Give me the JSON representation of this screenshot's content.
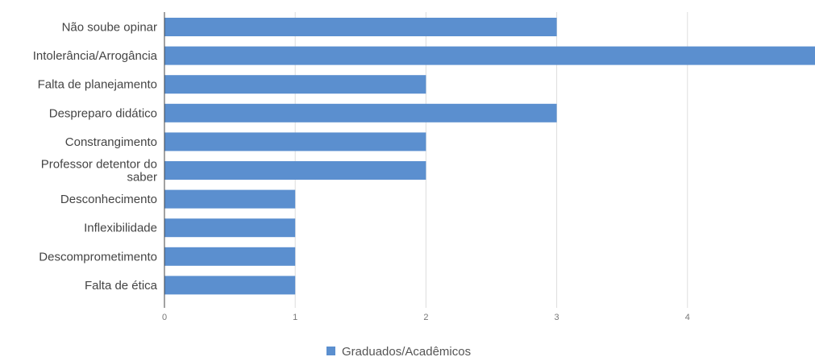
{
  "chart_data": {
    "type": "bar",
    "orientation": "horizontal",
    "categories": [
      [
        "Não soube opinar"
      ],
      [
        "Intolerância/Arrogância"
      ],
      [
        "Falta de planejamento"
      ],
      [
        "Despreparo didático"
      ],
      [
        "Constrangimento"
      ],
      [
        "Professor detentor do",
        "saber"
      ],
      [
        "Desconhecimento"
      ],
      [
        "Inflexibilidade"
      ],
      [
        "Descomprometimento"
      ],
      [
        "Falta de ética"
      ]
    ],
    "series": [
      {
        "name": "Graduados/Acadêmicos",
        "values": [
          3,
          5,
          2,
          3,
          2,
          2,
          1,
          1,
          1,
          1
        ]
      }
    ],
    "x_ticks": [
      "0",
      "1",
      "2",
      "3",
      "4"
    ],
    "xlim": [
      0,
      5
    ],
    "grid": true,
    "legend_position": "bottom",
    "bar_color": "#5b8fcf",
    "grid_color": "#dddddd",
    "axis_color": "#444444"
  }
}
